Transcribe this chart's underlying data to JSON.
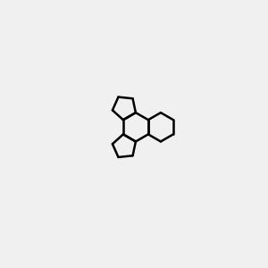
{
  "background_color": "#f0f0f0",
  "bond_color": "#000000",
  "N_color": "#0000ff",
  "O_color": "#ff0000",
  "figsize": [
    3.0,
    3.0
  ],
  "dpi": 100,
  "title": ""
}
